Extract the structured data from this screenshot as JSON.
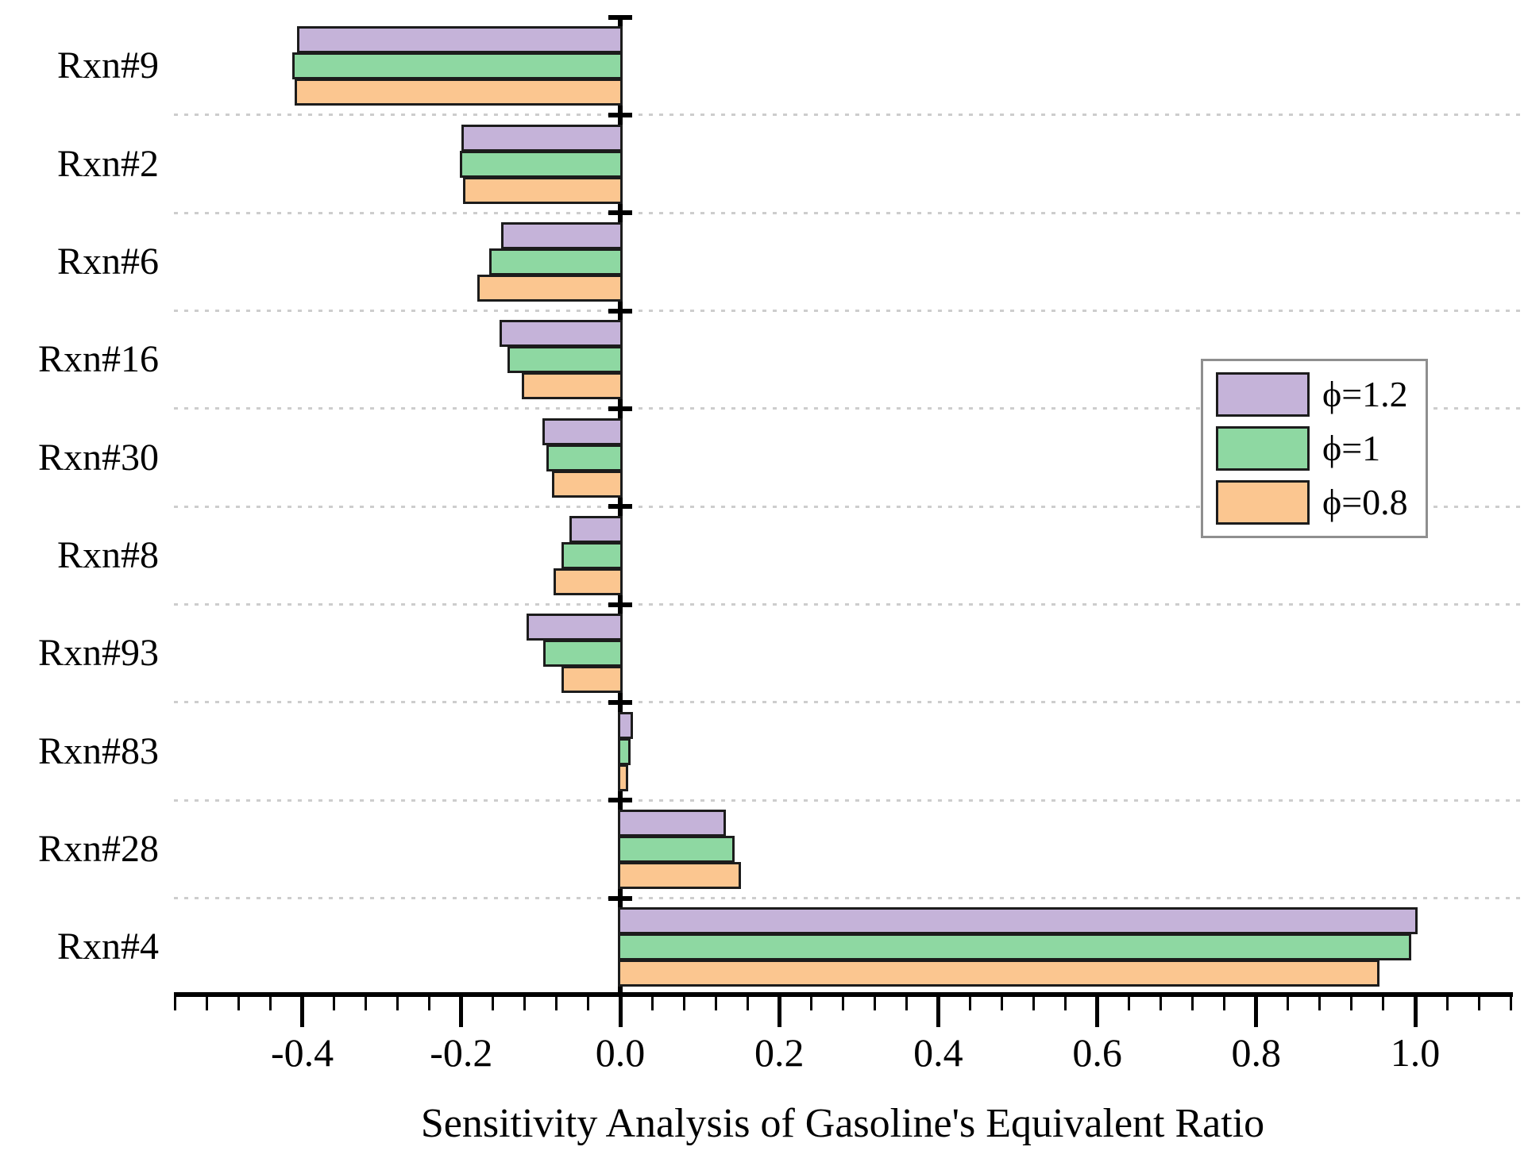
{
  "title": "Sensitivity Analysis of Gasoline's Equivalent Ratio",
  "colors": {
    "phi12": "#C5B3D9",
    "phi1": "#8ED8A2",
    "phi08": "#FBC690",
    "bar_border": "#1c1c1c",
    "grid": "#cdcdcd",
    "axis": "#000000",
    "legend_border": "#8f8f8f"
  },
  "legend": {
    "items": [
      {
        "label": "ϕ=1.2",
        "color_key": "phi12"
      },
      {
        "label": "ϕ=1",
        "color_key": "phi1"
      },
      {
        "label": "ϕ=0.8",
        "color_key": "phi08"
      }
    ]
  },
  "chart_data": {
    "type": "bar",
    "orientation": "horizontal",
    "title": "",
    "xlabel": "Sensitivity Analysis of Gasoline's Equivalent Ratio",
    "ylabel": "",
    "categories": [
      "Rxn#9",
      "Rxn#2",
      "Rxn#6",
      "Rxn#16",
      "Rxn#30",
      "Rxn#8",
      "Rxn#93",
      "Rxn#83",
      "Rxn#28",
      "Rxn#4"
    ],
    "series": [
      {
        "name": "ϕ=1.2",
        "color_key": "phi12",
        "values": [
          -0.407,
          -0.2,
          -0.15,
          -0.152,
          -0.098,
          -0.064,
          -0.118,
          0.013,
          0.13,
          1.0
        ]
      },
      {
        "name": "ϕ=1",
        "color_key": "phi1",
        "values": [
          -0.413,
          -0.202,
          -0.165,
          -0.142,
          -0.093,
          -0.074,
          -0.097,
          0.01,
          0.141,
          0.992
        ]
      },
      {
        "name": "ϕ=0.8",
        "color_key": "phi08",
        "values": [
          -0.41,
          -0.198,
          -0.18,
          -0.124,
          -0.086,
          -0.084,
          -0.074,
          0.007,
          0.149,
          0.952
        ]
      }
    ],
    "xlim": [
      -0.56,
      1.12
    ],
    "x_ticks": [
      -0.4,
      -0.2,
      0.0,
      0.2,
      0.4,
      0.6,
      0.8,
      1.0
    ],
    "x_tick_labels": [
      "-0.4",
      "-0.2",
      "0.0",
      "0.2",
      "0.4",
      "0.6",
      "0.8",
      "1.0"
    ],
    "minor_tick_step": 0.04,
    "grid": "horizontal-dotted",
    "legend_position": "right-middle"
  }
}
